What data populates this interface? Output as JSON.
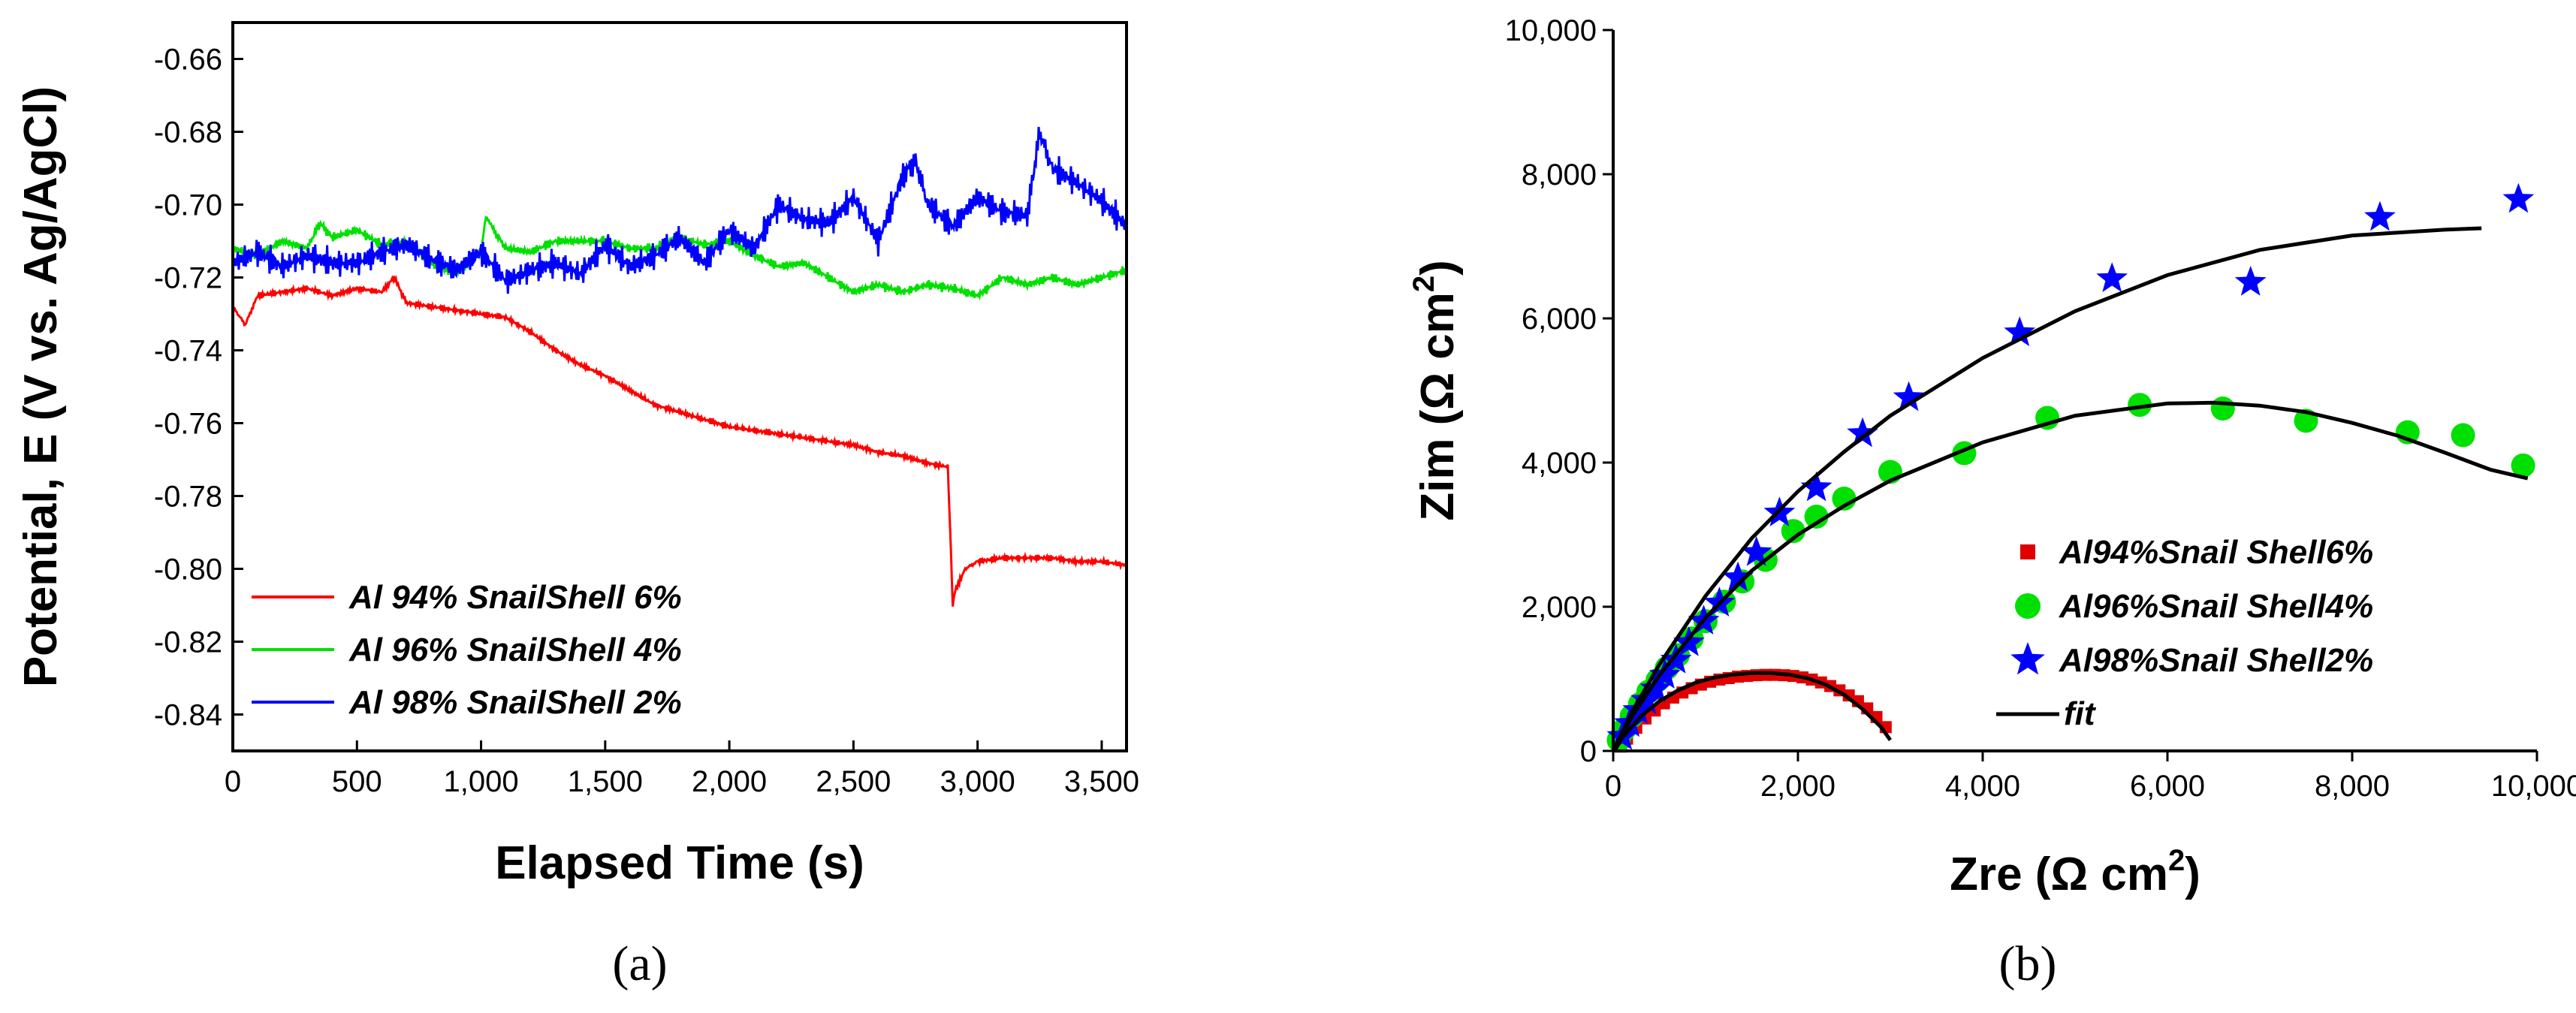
{
  "chart_data": [
    {
      "type": "line",
      "caption": "(a)",
      "xlabel": "Elapsed Time (s)",
      "ylabel": "Potential, E (V vs. Ag/AgCl)",
      "xlim": [
        0,
        3600
      ],
      "ylim": [
        -0.85,
        -0.65
      ],
      "xticks": [
        0,
        500,
        1000,
        1500,
        2000,
        2500,
        3000,
        3500
      ],
      "xtick_labels": [
        "0",
        "500",
        "1,000",
        "1,500",
        "2,000",
        "2,500",
        "3,000",
        "3,500"
      ],
      "yticks": [
        -0.84,
        -0.82,
        -0.8,
        -0.78,
        -0.76,
        -0.74,
        -0.72,
        -0.7,
        -0.68,
        -0.66
      ],
      "ytick_labels": [
        "-0.84",
        "-0.82",
        "-0.80",
        "-0.78",
        "-0.76",
        "-0.74",
        "-0.72",
        "-0.70",
        "-0.68",
        "-0.66"
      ],
      "legend_position": "bottom-left",
      "series": [
        {
          "name": "Al 94% SnailShell 6%",
          "color": "#ff0000",
          "x": [
            0,
            50,
            100,
            200,
            300,
            400,
            500,
            600,
            650,
            700,
            800,
            900,
            1000,
            1100,
            1200,
            1300,
            1400,
            1500,
            1600,
            1700,
            1800,
            1900,
            2000,
            2100,
            2200,
            2300,
            2400,
            2500,
            2600,
            2700,
            2800,
            2880,
            2890,
            2900,
            2910,
            2950,
            3000,
            3100,
            3200,
            3300,
            3400,
            3500,
            3600
          ],
          "y": [
            -0.728,
            -0.733,
            -0.725,
            -0.724,
            -0.723,
            -0.725,
            -0.723,
            -0.724,
            -0.72,
            -0.727,
            -0.728,
            -0.729,
            -0.73,
            -0.731,
            -0.735,
            -0.74,
            -0.744,
            -0.747,
            -0.751,
            -0.755,
            -0.757,
            -0.759,
            -0.761,
            -0.762,
            -0.763,
            -0.764,
            -0.765,
            -0.766,
            -0.768,
            -0.769,
            -0.771,
            -0.772,
            -0.79,
            -0.81,
            -0.806,
            -0.8,
            -0.798,
            -0.797,
            -0.797,
            -0.797,
            -0.798,
            -0.798,
            -0.799
          ]
        },
        {
          "name": "Al 96% SnailShell 4%",
          "color": "#00e000",
          "x": [
            0,
            100,
            200,
            300,
            350,
            400,
            500,
            600,
            700,
            800,
            900,
            1000,
            1020,
            1050,
            1100,
            1200,
            1300,
            1400,
            1500,
            1600,
            1700,
            1800,
            1900,
            2000,
            2100,
            2200,
            2300,
            2400,
            2500,
            2600,
            2700,
            2800,
            2900,
            3000,
            3100,
            3200,
            3300,
            3400,
            3500,
            3600
          ],
          "y": [
            -0.712,
            -0.714,
            -0.71,
            -0.712,
            -0.705,
            -0.709,
            -0.707,
            -0.711,
            -0.71,
            -0.716,
            -0.719,
            -0.713,
            -0.703,
            -0.707,
            -0.712,
            -0.713,
            -0.71,
            -0.71,
            -0.71,
            -0.712,
            -0.712,
            -0.709,
            -0.711,
            -0.71,
            -0.714,
            -0.717,
            -0.716,
            -0.72,
            -0.724,
            -0.722,
            -0.724,
            -0.722,
            -0.723,
            -0.725,
            -0.72,
            -0.722,
            -0.72,
            -0.722,
            -0.72,
            -0.718
          ]
        },
        {
          "name": "Al 98% SnailShell 2%",
          "color": "#0000ff",
          "x": [
            0,
            100,
            200,
            300,
            400,
            500,
            600,
            700,
            800,
            900,
            1000,
            1100,
            1200,
            1300,
            1400,
            1500,
            1600,
            1700,
            1800,
            1900,
            2000,
            2100,
            2200,
            2300,
            2400,
            2500,
            2600,
            2700,
            2750,
            2800,
            2900,
            3000,
            3100,
            3200,
            3250,
            3300,
            3400,
            3500,
            3600
          ],
          "y": [
            -0.716,
            -0.713,
            -0.717,
            -0.714,
            -0.716,
            -0.716,
            -0.713,
            -0.711,
            -0.715,
            -0.718,
            -0.713,
            -0.721,
            -0.718,
            -0.716,
            -0.719,
            -0.711,
            -0.717,
            -0.714,
            -0.709,
            -0.716,
            -0.707,
            -0.712,
            -0.7,
            -0.704,
            -0.705,
            -0.698,
            -0.71,
            -0.692,
            -0.688,
            -0.7,
            -0.706,
            -0.698,
            -0.702,
            -0.703,
            -0.68,
            -0.69,
            -0.694,
            -0.699,
            -0.706
          ]
        }
      ]
    },
    {
      "type": "scatter",
      "caption": "(b)",
      "xlabel": "Zre (Ω cm",
      "xlabel_sup": "2",
      "xlabel_close": ")",
      "ylabel": "Zim (Ω cm",
      "ylabel_sup": "2",
      "ylabel_close": ")",
      "xlim": [
        0,
        10000
      ],
      "ylim": [
        0,
        10000
      ],
      "xticks": [
        0,
        2000,
        4000,
        6000,
        8000,
        10000
      ],
      "xtick_labels": [
        "0",
        "2,000",
        "4,000",
        "6,000",
        "8,000",
        "10,000"
      ],
      "yticks": [
        0,
        2000,
        4000,
        6000,
        8000,
        10000
      ],
      "ytick_labels": [
        "0",
        "2,000",
        "4,000",
        "6,000",
        "8,000",
        "10,000"
      ],
      "legend_position": "bottom-right",
      "series": [
        {
          "name": "Al94%Snail Shell6%",
          "marker": "square",
          "color": "#e00000",
          "x": [
            80,
            150,
            250,
            350,
            450,
            550,
            650,
            750,
            850,
            950,
            1050,
            1150,
            1250,
            1350,
            1450,
            1550,
            1650,
            1750,
            1850,
            1950,
            2050,
            2150,
            2250,
            2350,
            2450,
            2550,
            2650,
            2750,
            2850,
            2950
          ],
          "y": [
            60,
            170,
            320,
            450,
            560,
            660,
            740,
            810,
            870,
            920,
            960,
            990,
            1010,
            1030,
            1040,
            1050,
            1055,
            1055,
            1050,
            1040,
            1020,
            990,
            950,
            900,
            840,
            770,
            690,
            590,
            470,
            330
          ]
        },
        {
          "name": "Al96%Snail Shell4%",
          "marker": "circle",
          "color": "#00e000",
          "x": [
            60,
            120,
            200,
            290,
            380,
            480,
            580,
            700,
            850,
            1000,
            1200,
            1400,
            1650,
            1950,
            2200,
            2500,
            3000,
            3800,
            4700,
            5700,
            6600,
            7500,
            8600,
            9200,
            9850
          ],
          "y": [
            150,
            300,
            480,
            650,
            820,
            980,
            1150,
            1330,
            1560,
            1800,
            2070,
            2350,
            2650,
            3050,
            3250,
            3500,
            3870,
            4130,
            4620,
            4800,
            4750,
            4580,
            4420,
            4380,
            3960
          ]
        },
        {
          "name": "Al98%Snail Shell2%",
          "marker": "star",
          "color": "#0000ff",
          "x": [
            100,
            180,
            270,
            360,
            460,
            560,
            680,
            820,
            980,
            1150,
            1350,
            1550,
            1800,
            2200,
            2700,
            3200,
            4400,
            5400,
            6900,
            8300,
            9800
          ],
          "y": [
            200,
            380,
            560,
            700,
            860,
            1050,
            1260,
            1500,
            1800,
            2050,
            2400,
            2750,
            3300,
            3650,
            4400,
            4900,
            5800,
            6550,
            6500,
            7400,
            7650
          ]
        },
        {
          "name": "fit",
          "marker": "line",
          "color": "#000000",
          "curves": [
            {
              "x": [
                20,
                100,
                300,
                500,
                700,
                900,
                1100,
                1300,
                1500,
                1700,
                1900,
                2100,
                2300,
                2500,
                2700,
                2900,
                3000
              ],
              "y": [
                10,
                190,
                480,
                690,
                840,
                950,
                1020,
                1060,
                1080,
                1080,
                1060,
                1010,
                920,
                780,
                580,
                330,
                150
              ]
            },
            {
              "x": [
                0,
                200,
                500,
                1000,
                1500,
                2000,
                2500,
                3000,
                4000,
                5000,
                6000,
                6500,
                7000,
                7500,
                8000,
                8500,
                9000,
                9500,
                9900
              ],
              "y": [
                0,
                470,
                1050,
                1850,
                2500,
                3000,
                3400,
                3750,
                4280,
                4650,
                4820,
                4830,
                4790,
                4700,
                4550,
                4370,
                4140,
                3900,
                3780
              ]
            },
            {
              "x": [
                0,
                200,
                500,
                1000,
                1500,
                2000,
                2500,
                3000,
                4000,
                5000,
                6000,
                7000,
                8000,
                9000,
                9400
              ],
              "y": [
                0,
                530,
                1200,
                2150,
                2950,
                3600,
                4150,
                4650,
                5450,
                6100,
                6600,
                6950,
                7150,
                7230,
                7250
              ]
            }
          ]
        }
      ]
    }
  ]
}
